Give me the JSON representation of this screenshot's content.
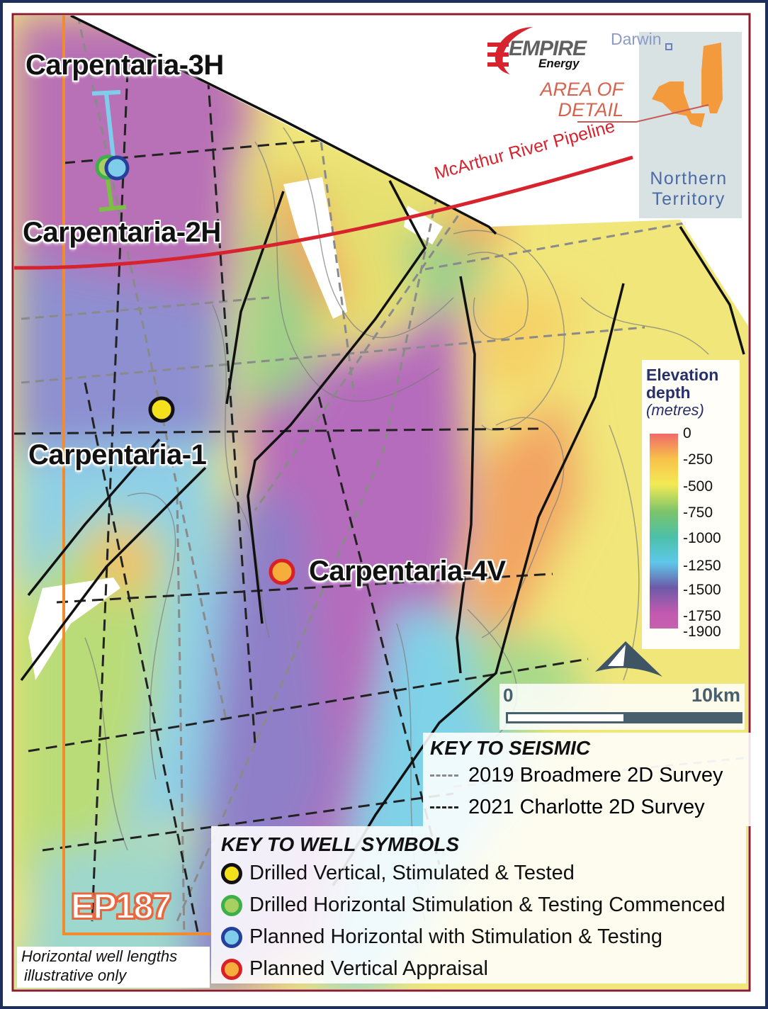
{
  "title_block": {
    "logo": {
      "brand": "EMPIRE",
      "sub": "Energy"
    },
    "area_of_detail": [
      "AREA OF",
      "DETAIL"
    ],
    "inset": {
      "city": "Darwin",
      "region": [
        "Northern",
        "Territory"
      ]
    }
  },
  "map": {
    "pipeline_label": "McArthur River Pipeline",
    "permit_label": "EP187",
    "note": [
      "Horizontal well lengths",
      "illustrative only"
    ],
    "wells": [
      {
        "name": "Carpentaria-3H",
        "type": "planned-horizontal"
      },
      {
        "name": "Carpentaria-2H",
        "type": "drilled-horizontal"
      },
      {
        "name": "Carpentaria-1",
        "type": "drilled-vertical"
      },
      {
        "name": "Carpentaria-4V",
        "type": "planned-vertical"
      }
    ],
    "colors": {
      "frame": "#8a1c2c",
      "outer_border": "#1d2f5a",
      "permit": "#f28a2e",
      "pipeline": "#d7232e",
      "fault": "#111111"
    }
  },
  "elevation_legend": {
    "title": [
      "Elevation",
      "depth"
    ],
    "unit": "(metres)",
    "stops": [
      {
        "value": 0,
        "color": "#f06a6a"
      },
      {
        "value": -250,
        "color": "#f8c24a"
      },
      {
        "value": -500,
        "color": "#f3ea55"
      },
      {
        "value": -750,
        "color": "#7cc46a"
      },
      {
        "value": -1000,
        "color": "#4cc0a8"
      },
      {
        "value": -1250,
        "color": "#5ec8ea"
      },
      {
        "value": -1500,
        "color": "#6c5aa8"
      },
      {
        "value": -1750,
        "color": "#c25ab0"
      },
      {
        "value": -1900,
        "color": "#c860b0"
      }
    ],
    "ticks": [
      "0",
      "-250",
      "-500",
      "-750",
      "-1000",
      "-1250",
      "-1500",
      "-1750",
      "-1900"
    ]
  },
  "scale_bar": {
    "start": "0",
    "end": "10km"
  },
  "seismic_key": {
    "title": "KEY TO SEISMIC",
    "items": [
      {
        "label": "2019 Broadmere 2D Survey",
        "color": "#8a8a8a"
      },
      {
        "label": "2021 Charlotte 2D Survey",
        "color": "#222222"
      }
    ]
  },
  "well_key": {
    "title": "KEY TO WELL SYMBOLS",
    "items": [
      {
        "label": "Drilled Vertical, Stimulated & Tested",
        "ring": "#111111",
        "fill": "#f5e11b"
      },
      {
        "label": "Drilled Horizontal Stimulation & Testing Commenced",
        "ring": "#3db04a",
        "fill": "#a7cf62"
      },
      {
        "label": "Planned Horizontal with Stimulation & Testing",
        "ring": "#24409a",
        "fill": "#7fcdea"
      },
      {
        "label": "Planned Vertical Appraisal",
        "ring": "#d92027",
        "fill": "#f5ad3c"
      }
    ]
  }
}
